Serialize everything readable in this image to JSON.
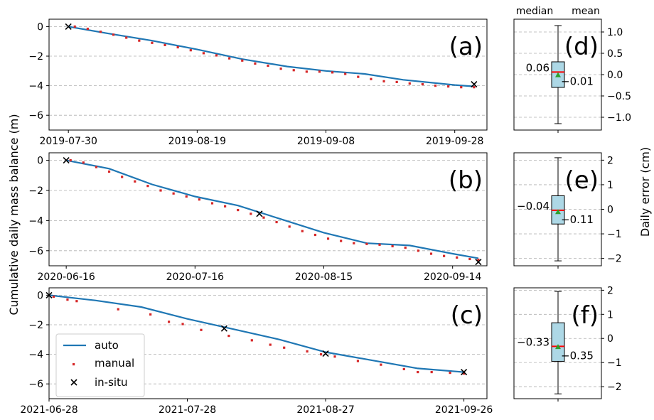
{
  "figure": {
    "ylabel_left": "Cumulative daily mass balance (m)",
    "ylabel_right": "Daily error (cm)",
    "box_header_median": "median",
    "box_header_mean": "mean"
  },
  "legend": {
    "auto": "auto",
    "manual": "manual",
    "insitu": "in-situ",
    "auto_color": "#1f77b4",
    "manual_color": "#d62728"
  },
  "chart_data": [
    {
      "type": "line",
      "panel_label": "(a)",
      "x_type": "date",
      "xlim": [
        "2019-07-27",
        "2019-10-03"
      ],
      "ylim": [
        -7,
        0.5
      ],
      "xticks": [
        "2019-07-30",
        "2019-08-19",
        "2019-09-08",
        "2019-09-28"
      ],
      "yticks": [
        0,
        -2,
        -4,
        -6
      ],
      "grid": "horizontal dashed",
      "series": [
        {
          "name": "auto",
          "style": "line",
          "x": [
            "2019-07-30",
            "2019-08-05",
            "2019-08-12",
            "2019-08-19",
            "2019-08-26",
            "2019-09-02",
            "2019-09-08",
            "2019-09-14",
            "2019-09-20",
            "2019-09-28",
            "2019-10-01"
          ],
          "y": [
            0,
            -0.45,
            -0.95,
            -1.55,
            -2.2,
            -2.7,
            -3.0,
            -3.2,
            -3.6,
            -3.95,
            -4.05
          ]
        },
        {
          "name": "manual",
          "style": "dots",
          "x": [
            "2019-07-31",
            "2019-08-02",
            "2019-08-04",
            "2019-08-06",
            "2019-08-08",
            "2019-08-10",
            "2019-08-12",
            "2019-08-14",
            "2019-08-16",
            "2019-08-18",
            "2019-08-20",
            "2019-08-22",
            "2019-08-24",
            "2019-08-26",
            "2019-08-28",
            "2019-08-30",
            "2019-09-01",
            "2019-09-03",
            "2019-09-05",
            "2019-09-07",
            "2019-09-09",
            "2019-09-11",
            "2019-09-13",
            "2019-09-15",
            "2019-09-17",
            "2019-09-19",
            "2019-09-21",
            "2019-09-23",
            "2019-09-25",
            "2019-09-27",
            "2019-09-29",
            "2019-10-01"
          ],
          "y": [
            0.0,
            -0.15,
            -0.35,
            -0.55,
            -0.75,
            -0.95,
            -1.1,
            -1.25,
            -1.4,
            -1.6,
            -1.8,
            -1.95,
            -2.15,
            -2.3,
            -2.5,
            -2.65,
            -2.85,
            -2.95,
            -3.05,
            -3.05,
            -3.1,
            -3.2,
            -3.4,
            -3.55,
            -3.7,
            -3.75,
            -3.85,
            -3.9,
            -4.0,
            -4.05,
            -4.1,
            -4.1
          ]
        },
        {
          "name": "in-situ",
          "style": "x",
          "x": [
            "2019-07-30",
            "2019-10-01"
          ],
          "y": [
            0,
            -3.9
          ]
        }
      ]
    },
    {
      "type": "line",
      "panel_label": "(b)",
      "x_type": "date",
      "xlim": [
        "2020-06-12",
        "2020-09-22"
      ],
      "ylim": [
        -7,
        0.5
      ],
      "xticks": [
        "2020-06-16",
        "2020-07-16",
        "2020-08-15",
        "2020-09-14"
      ],
      "yticks": [
        0,
        -2,
        -4,
        -6
      ],
      "grid": "horizontal dashed",
      "series": [
        {
          "name": "auto",
          "style": "line",
          "x": [
            "2020-06-16",
            "2020-06-26",
            "2020-07-06",
            "2020-07-16",
            "2020-07-26",
            "2020-08-05",
            "2020-08-15",
            "2020-08-25",
            "2020-09-04",
            "2020-09-14",
            "2020-09-20"
          ],
          "y": [
            0,
            -0.55,
            -1.6,
            -2.4,
            -3.0,
            -3.9,
            -4.8,
            -5.5,
            -5.65,
            -6.2,
            -6.5
          ]
        },
        {
          "name": "manual",
          "style": "dots",
          "x": [
            "2020-06-17",
            "2020-06-20",
            "2020-06-23",
            "2020-06-26",
            "2020-06-29",
            "2020-07-02",
            "2020-07-05",
            "2020-07-08",
            "2020-07-11",
            "2020-07-14",
            "2020-07-17",
            "2020-07-20",
            "2020-07-23",
            "2020-07-26",
            "2020-07-29",
            "2020-08-01",
            "2020-08-04",
            "2020-08-07",
            "2020-08-10",
            "2020-08-13",
            "2020-08-16",
            "2020-08-19",
            "2020-08-22",
            "2020-08-25",
            "2020-08-28",
            "2020-08-31",
            "2020-09-03",
            "2020-09-06",
            "2020-09-09",
            "2020-09-12",
            "2020-09-15",
            "2020-09-18",
            "2020-09-20"
          ],
          "y": [
            0.0,
            -0.15,
            -0.45,
            -0.75,
            -1.1,
            -1.4,
            -1.7,
            -2.0,
            -2.2,
            -2.4,
            -2.6,
            -2.85,
            -3.05,
            -3.3,
            -3.55,
            -3.8,
            -4.1,
            -4.4,
            -4.7,
            -4.95,
            -5.2,
            -5.35,
            -5.5,
            -5.55,
            -5.6,
            -5.7,
            -5.8,
            -6.0,
            -6.2,
            -6.35,
            -6.45,
            -6.55,
            -6.6
          ]
        },
        {
          "name": "in-situ",
          "style": "x",
          "x": [
            "2020-06-16",
            "2020-07-31",
            "2020-09-20"
          ],
          "y": [
            0,
            -3.55,
            -6.75
          ]
        }
      ]
    },
    {
      "type": "line",
      "panel_label": "(c)",
      "x_type": "date",
      "xlim": [
        "2021-06-28",
        "2021-10-01"
      ],
      "ylim": [
        -7,
        0.5
      ],
      "xticks": [
        "2021-06-28",
        "2021-07-28",
        "2021-08-27",
        "2021-09-26"
      ],
      "yticks": [
        0,
        -2,
        -4,
        -6
      ],
      "grid": "horizontal dashed",
      "legend_position": "lower left",
      "series": [
        {
          "name": "auto",
          "style": "line",
          "x": [
            "2021-06-28",
            "2021-07-08",
            "2021-07-18",
            "2021-07-28",
            "2021-08-07",
            "2021-08-17",
            "2021-08-27",
            "2021-09-06",
            "2021-09-16",
            "2021-09-26"
          ],
          "y": [
            0,
            -0.35,
            -0.8,
            -1.6,
            -2.3,
            -3.0,
            -3.85,
            -4.4,
            -4.95,
            -5.2
          ]
        },
        {
          "name": "manual",
          "style": "dots",
          "x": [
            "2021-06-29",
            "2021-07-02",
            "2021-07-04",
            "2021-07-13",
            "2021-07-20",
            "2021-07-24",
            "2021-07-27",
            "2021-07-31",
            "2021-08-06",
            "2021-08-11",
            "2021-08-15",
            "2021-08-18",
            "2021-08-23",
            "2021-08-26",
            "2021-08-29",
            "2021-09-03",
            "2021-09-08",
            "2021-09-13",
            "2021-09-16",
            "2021-09-19",
            "2021-09-23",
            "2021-09-26"
          ],
          "y": [
            -0.1,
            -0.3,
            -0.4,
            -0.95,
            -1.3,
            -1.8,
            -1.95,
            -2.35,
            -2.75,
            -3.05,
            -3.35,
            -3.55,
            -3.8,
            -4.0,
            -4.15,
            -4.45,
            -4.7,
            -5.0,
            -5.2,
            -5.2,
            -5.25,
            -5.3
          ]
        },
        {
          "name": "in-situ",
          "style": "x",
          "x": [
            "2021-06-28",
            "2021-08-05",
            "2021-08-27",
            "2021-09-26"
          ],
          "y": [
            0,
            -2.25,
            -3.95,
            -5.2
          ]
        }
      ]
    },
    {
      "type": "box",
      "panel_label": "(d)",
      "ylim": [
        -1.3,
        1.3
      ],
      "yticks": [
        1.0,
        0.5,
        0.0,
        -0.5,
        -1.0
      ],
      "yticklabels": [
        "1.0",
        "0.5",
        "0.0",
        "-0.5",
        "-1.0"
      ],
      "whisker_low": -1.15,
      "q1": -0.3,
      "median": 0.06,
      "q3": 0.3,
      "whisker_high": 1.15,
      "mean": -0.01,
      "median_label": "0.06",
      "mean_label": "-0.01"
    },
    {
      "type": "box",
      "panel_label": "(e)",
      "ylim": [
        -2.3,
        2.3
      ],
      "yticks": [
        2,
        1,
        0,
        -1,
        -2
      ],
      "yticklabels": [
        "2",
        "1",
        "0",
        "-1",
        "-2"
      ],
      "whisker_low": -2.1,
      "q1": -0.6,
      "median": -0.04,
      "q3": 0.55,
      "whisker_high": 2.1,
      "mean": -0.11,
      "median_label": "-0.04",
      "mean_label": "-0.11"
    },
    {
      "type": "box",
      "panel_label": "(f)",
      "ylim": [
        -2.5,
        2.1
      ],
      "yticks": [
        2,
        1,
        0,
        -1,
        -2
      ],
      "yticklabels": [
        "2",
        "1",
        "0",
        "-1",
        "-2"
      ],
      "whisker_low": -2.3,
      "q1": -0.95,
      "median": -0.33,
      "q3": 0.65,
      "whisker_high": 1.95,
      "mean": -0.35,
      "median_label": "-0.33",
      "mean_label": "-0.35"
    }
  ]
}
